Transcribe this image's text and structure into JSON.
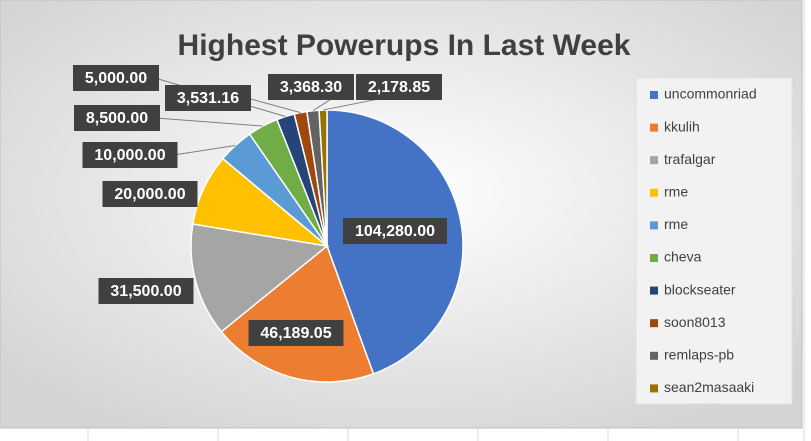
{
  "chart_data": {
    "type": "pie",
    "title": "Highest Powerups In Last Week",
    "categories": [
      "uncommonriad",
      "kkulih",
      "trafalgar",
      "rme",
      "rme",
      "cheva",
      "blockseater",
      "soon8013",
      "remlaps-pb",
      "sean2masaaki"
    ],
    "values": [
      104280,
      46189.05,
      31500,
      20000,
      10000,
      8500,
      5000,
      3531.16,
      3368.3,
      2178.85
    ],
    "value_labels": [
      "104,280.00",
      "46,189.05",
      "31,500.00",
      "20,000.00",
      "10,000.00",
      "8,500.00",
      "5,000.00",
      "3,531.16",
      "3,368.30",
      "2,178.85"
    ],
    "colors": [
      "#4472c4",
      "#ed7d31",
      "#a5a5a5",
      "#ffc000",
      "#5b9bd5",
      "#70ad47",
      "#264478",
      "#9e480e",
      "#636363",
      "#997300"
    ],
    "legend": "right"
  }
}
